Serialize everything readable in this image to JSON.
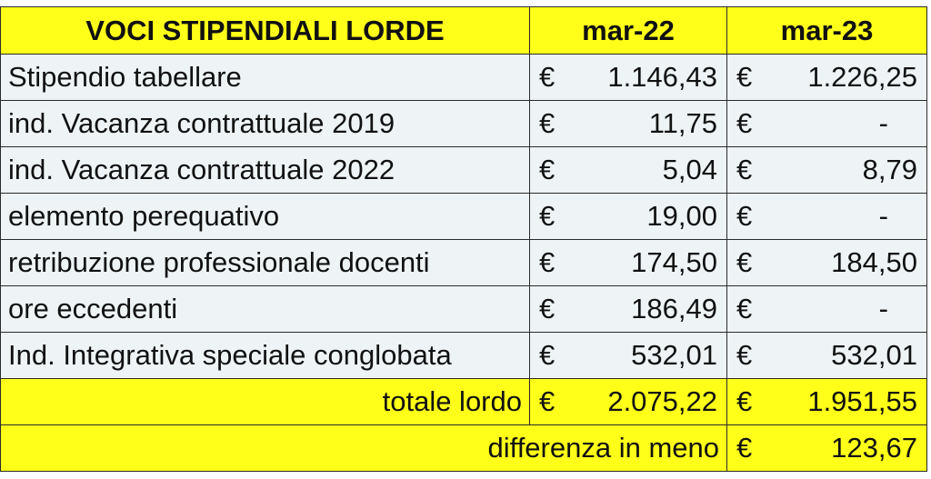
{
  "header": {
    "col_label": "VOCI STIPENDIALI LORDE",
    "col_a": "mar-22",
    "col_b": "mar-23"
  },
  "rows": [
    {
      "label": "Stipendio tabellare",
      "a": {
        "cur": "€",
        "amt": "1.146,43"
      },
      "b": {
        "cur": "€",
        "amt": "1.226,25"
      }
    },
    {
      "label": "ind. Vacanza contrattuale 2019",
      "a": {
        "cur": "€",
        "amt": "11,75"
      },
      "b": {
        "cur": "€",
        "amt": "-"
      }
    },
    {
      "label": "ind. Vacanza contrattuale 2022",
      "a": {
        "cur": "€",
        "amt": "5,04"
      },
      "b": {
        "cur": "€",
        "amt": "8,79"
      }
    },
    {
      "label": "elemento perequativo",
      "a": {
        "cur": "€",
        "amt": "19,00"
      },
      "b": {
        "cur": "€",
        "amt": "-"
      }
    },
    {
      "label": "retribuzione professionale docenti",
      "a": {
        "cur": "€",
        "amt": "174,50"
      },
      "b": {
        "cur": "€",
        "amt": "184,50"
      }
    },
    {
      "label": "ore eccedenti",
      "a": {
        "cur": "€",
        "amt": "186,49"
      },
      "b": {
        "cur": "€",
        "amt": "-"
      }
    },
    {
      "label": "Ind. Integrativa speciale conglobata",
      "a": {
        "cur": "€",
        "amt": "532,01"
      },
      "b": {
        "cur": "€",
        "amt": "532,01"
      }
    }
  ],
  "total": {
    "label": "totale lordo",
    "a": {
      "cur": "€",
      "amt": "2.075,22"
    },
    "b": {
      "cur": "€",
      "amt": "1.951,55"
    }
  },
  "difference": {
    "label": "differenza in meno",
    "cur": "€",
    "amt": "123,67"
  },
  "colors": {
    "highlight": "#ffff1a",
    "body_bg": "#eef4f6",
    "border": "#2b2b2b"
  }
}
